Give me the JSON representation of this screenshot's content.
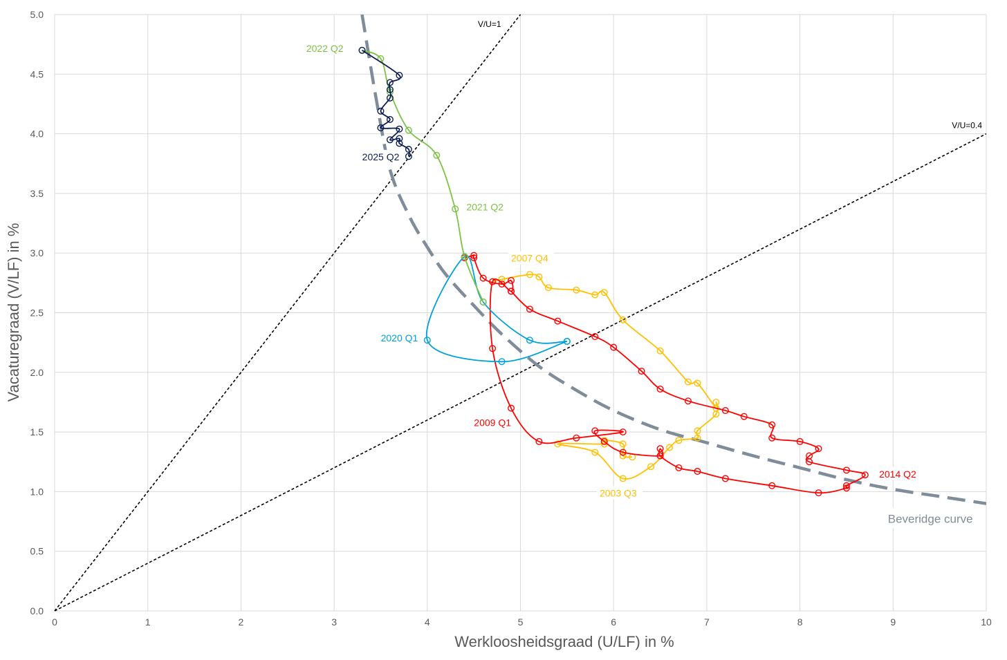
{
  "chart_data": {
    "type": "line",
    "xlabel": "Werkloosheidsgraad (U/LF) in %",
    "ylabel": "Vacaturegraad (V/LF) in %",
    "xlim": [
      0,
      10
    ],
    "ylim": [
      0,
      5
    ],
    "x_ticks": [
      "0",
      "1",
      "2",
      "3",
      "4",
      "5",
      "6",
      "7",
      "8",
      "9",
      "10"
    ],
    "y_ticks": [
      "0.0",
      "0.5",
      "1.0",
      "1.5",
      "2.0",
      "2.5",
      "3.0",
      "3.5",
      "4.0",
      "4.5",
      "5.0"
    ],
    "grid": "vertical and horizontal gridlines",
    "colors": {
      "grid": "#d9d9d9",
      "tick_text": "#595959",
      "reference_lines": "#000000",
      "beveridge": "#7f8c99"
    },
    "series": [
      {
        "color": "#ffc000",
        "points": [
          [
            6.2,
            1.29
          ],
          [
            6.1,
            1.3
          ],
          [
            6.1,
            1.4
          ],
          [
            5.9,
            1.43
          ],
          [
            5.9,
            1.4
          ],
          [
            5.4,
            1.4
          ],
          [
            5.8,
            1.33
          ],
          [
            6.1,
            1.11
          ],
          [
            6.4,
            1.21
          ],
          [
            6.6,
            1.37
          ],
          [
            6.7,
            1.43
          ],
          [
            6.9,
            1.45
          ],
          [
            6.9,
            1.51
          ],
          [
            7.1,
            1.65
          ],
          [
            7.1,
            1.75
          ],
          [
            7.1,
            1.7
          ],
          [
            6.9,
            1.91
          ],
          [
            6.8,
            1.92
          ],
          [
            6.5,
            2.18
          ],
          [
            6.1,
            2.44
          ],
          [
            5.9,
            2.67
          ],
          [
            5.8,
            2.65
          ],
          [
            5.6,
            2.69
          ],
          [
            5.3,
            2.71
          ],
          [
            5.2,
            2.8
          ],
          [
            5.1,
            2.82
          ],
          [
            4.8,
            2.78
          ],
          [
            4.7,
            2.76
          ]
        ]
      },
      {
        "color": "#ff0000",
        "points": [
          [
            4.4,
            2.96
          ],
          [
            4.5,
            2.98
          ],
          [
            4.5,
            2.96
          ],
          [
            4.6,
            2.79
          ],
          [
            4.8,
            2.74
          ],
          [
            4.9,
            2.77
          ],
          [
            4.9,
            2.68
          ],
          [
            4.7,
            2.76
          ],
          [
            4.7,
            2.2
          ],
          [
            4.9,
            1.7
          ],
          [
            5.2,
            1.42
          ],
          [
            5.6,
            1.45
          ],
          [
            6.1,
            1.5
          ],
          [
            5.8,
            1.51
          ],
          [
            5.9,
            1.42
          ],
          [
            6.1,
            1.33
          ],
          [
            6.5,
            1.3
          ],
          [
            6.5,
            1.36
          ],
          [
            6.5,
            1.3
          ],
          [
            6.7,
            1.2
          ],
          [
            6.9,
            1.17
          ],
          [
            7.2,
            1.11
          ],
          [
            7.7,
            1.05
          ],
          [
            8.2,
            0.99
          ],
          [
            8.5,
            1.03
          ],
          [
            8.5,
            1.05
          ],
          [
            8.7,
            1.14
          ],
          [
            8.5,
            1.18
          ],
          [
            8.1,
            1.25
          ],
          [
            8.1,
            1.3
          ],
          [
            8.2,
            1.36
          ],
          [
            8.0,
            1.42
          ],
          [
            7.7,
            1.45
          ],
          [
            7.7,
            1.56
          ],
          [
            7.4,
            1.63
          ],
          [
            7.2,
            1.68
          ],
          [
            6.8,
            1.76
          ],
          [
            6.5,
            1.86
          ],
          [
            6.3,
            2.01
          ],
          [
            6.0,
            2.21
          ],
          [
            5.8,
            2.3
          ],
          [
            5.4,
            2.43
          ],
          [
            5.1,
            2.53
          ],
          [
            4.9,
            2.68
          ]
        ]
      },
      {
        "color": "#00a0dc",
        "points": [
          [
            5.5,
            2.26
          ],
          [
            5.1,
            2.27
          ],
          [
            4.6,
            2.59
          ],
          [
            4.4,
            2.97
          ],
          [
            4.0,
            2.27
          ],
          [
            4.8,
            2.09
          ],
          [
            5.5,
            2.26
          ]
        ]
      },
      {
        "color": "#7cc242",
        "points": [
          [
            4.6,
            2.59
          ],
          [
            4.4,
            2.97
          ],
          [
            4.3,
            3.37
          ],
          [
            4.1,
            3.82
          ],
          [
            3.8,
            4.03
          ],
          [
            3.6,
            4.35
          ],
          [
            3.5,
            4.63
          ],
          [
            3.3,
            4.7
          ]
        ]
      },
      {
        "color": "#0b1d51",
        "points": [
          [
            3.3,
            4.7
          ],
          [
            3.7,
            4.49
          ],
          [
            3.6,
            4.43
          ],
          [
            3.6,
            4.37
          ],
          [
            3.6,
            4.3
          ],
          [
            3.5,
            4.19
          ],
          [
            3.6,
            4.12
          ],
          [
            3.5,
            4.05
          ],
          [
            3.7,
            4.04
          ],
          [
            3.6,
            3.95
          ],
          [
            3.7,
            3.96
          ],
          [
            3.7,
            3.92
          ],
          [
            3.8,
            3.87
          ],
          [
            3.8,
            3.81
          ]
        ]
      }
    ],
    "beveridge_curve": {
      "label": "Beveridge curve",
      "points": [
        [
          3.3,
          5.0
        ],
        [
          3.45,
          4.3
        ],
        [
          3.6,
          3.7
        ],
        [
          3.8,
          3.32
        ],
        [
          4.0,
          3.05
        ],
        [
          4.2,
          2.82
        ],
        [
          4.5,
          2.56
        ],
        [
          4.8,
          2.32
        ],
        [
          5.2,
          2.05
        ],
        [
          5.6,
          1.85
        ],
        [
          6.0,
          1.68
        ],
        [
          6.5,
          1.52
        ],
        [
          7.0,
          1.41
        ],
        [
          7.5,
          1.3
        ],
        [
          8.0,
          1.2
        ],
        [
          8.5,
          1.1
        ],
        [
          9.0,
          1.02
        ],
        [
          9.5,
          0.96
        ],
        [
          10.0,
          0.9
        ]
      ]
    },
    "reference_lines": [
      {
        "label": "V/U=1",
        "slope": 1
      },
      {
        "label": "V/U=0.4",
        "slope": 0.4
      }
    ],
    "annotations": [
      {
        "text": "2022 Q2",
        "x": 3.1,
        "y": 4.7,
        "anchor": "end",
        "color": "#7cc242"
      },
      {
        "text": "2025 Q2",
        "x": 3.7,
        "y": 3.79,
        "anchor": "end",
        "color": "#0b1d51"
      },
      {
        "text": "2021 Q2",
        "x": 4.42,
        "y": 3.37,
        "anchor": "start",
        "color": "#7cc242"
      },
      {
        "text": "2007 Q4",
        "x": 4.9,
        "y": 2.94,
        "anchor": "start",
        "color": "#ffc000"
      },
      {
        "text": "2020 Q1",
        "x": 3.9,
        "y": 2.27,
        "anchor": "end",
        "color": "#00a0dc"
      },
      {
        "text": "2009 Q1",
        "x": 4.9,
        "y": 1.56,
        "anchor": "end",
        "color": "#ff0000"
      },
      {
        "text": "2014 Q2",
        "x": 8.85,
        "y": 1.13,
        "anchor": "start",
        "color": "#ff0000"
      },
      {
        "text": "2003 Q3",
        "x": 5.85,
        "y": 0.97,
        "anchor": "start",
        "color": "#ffc000"
      }
    ]
  }
}
